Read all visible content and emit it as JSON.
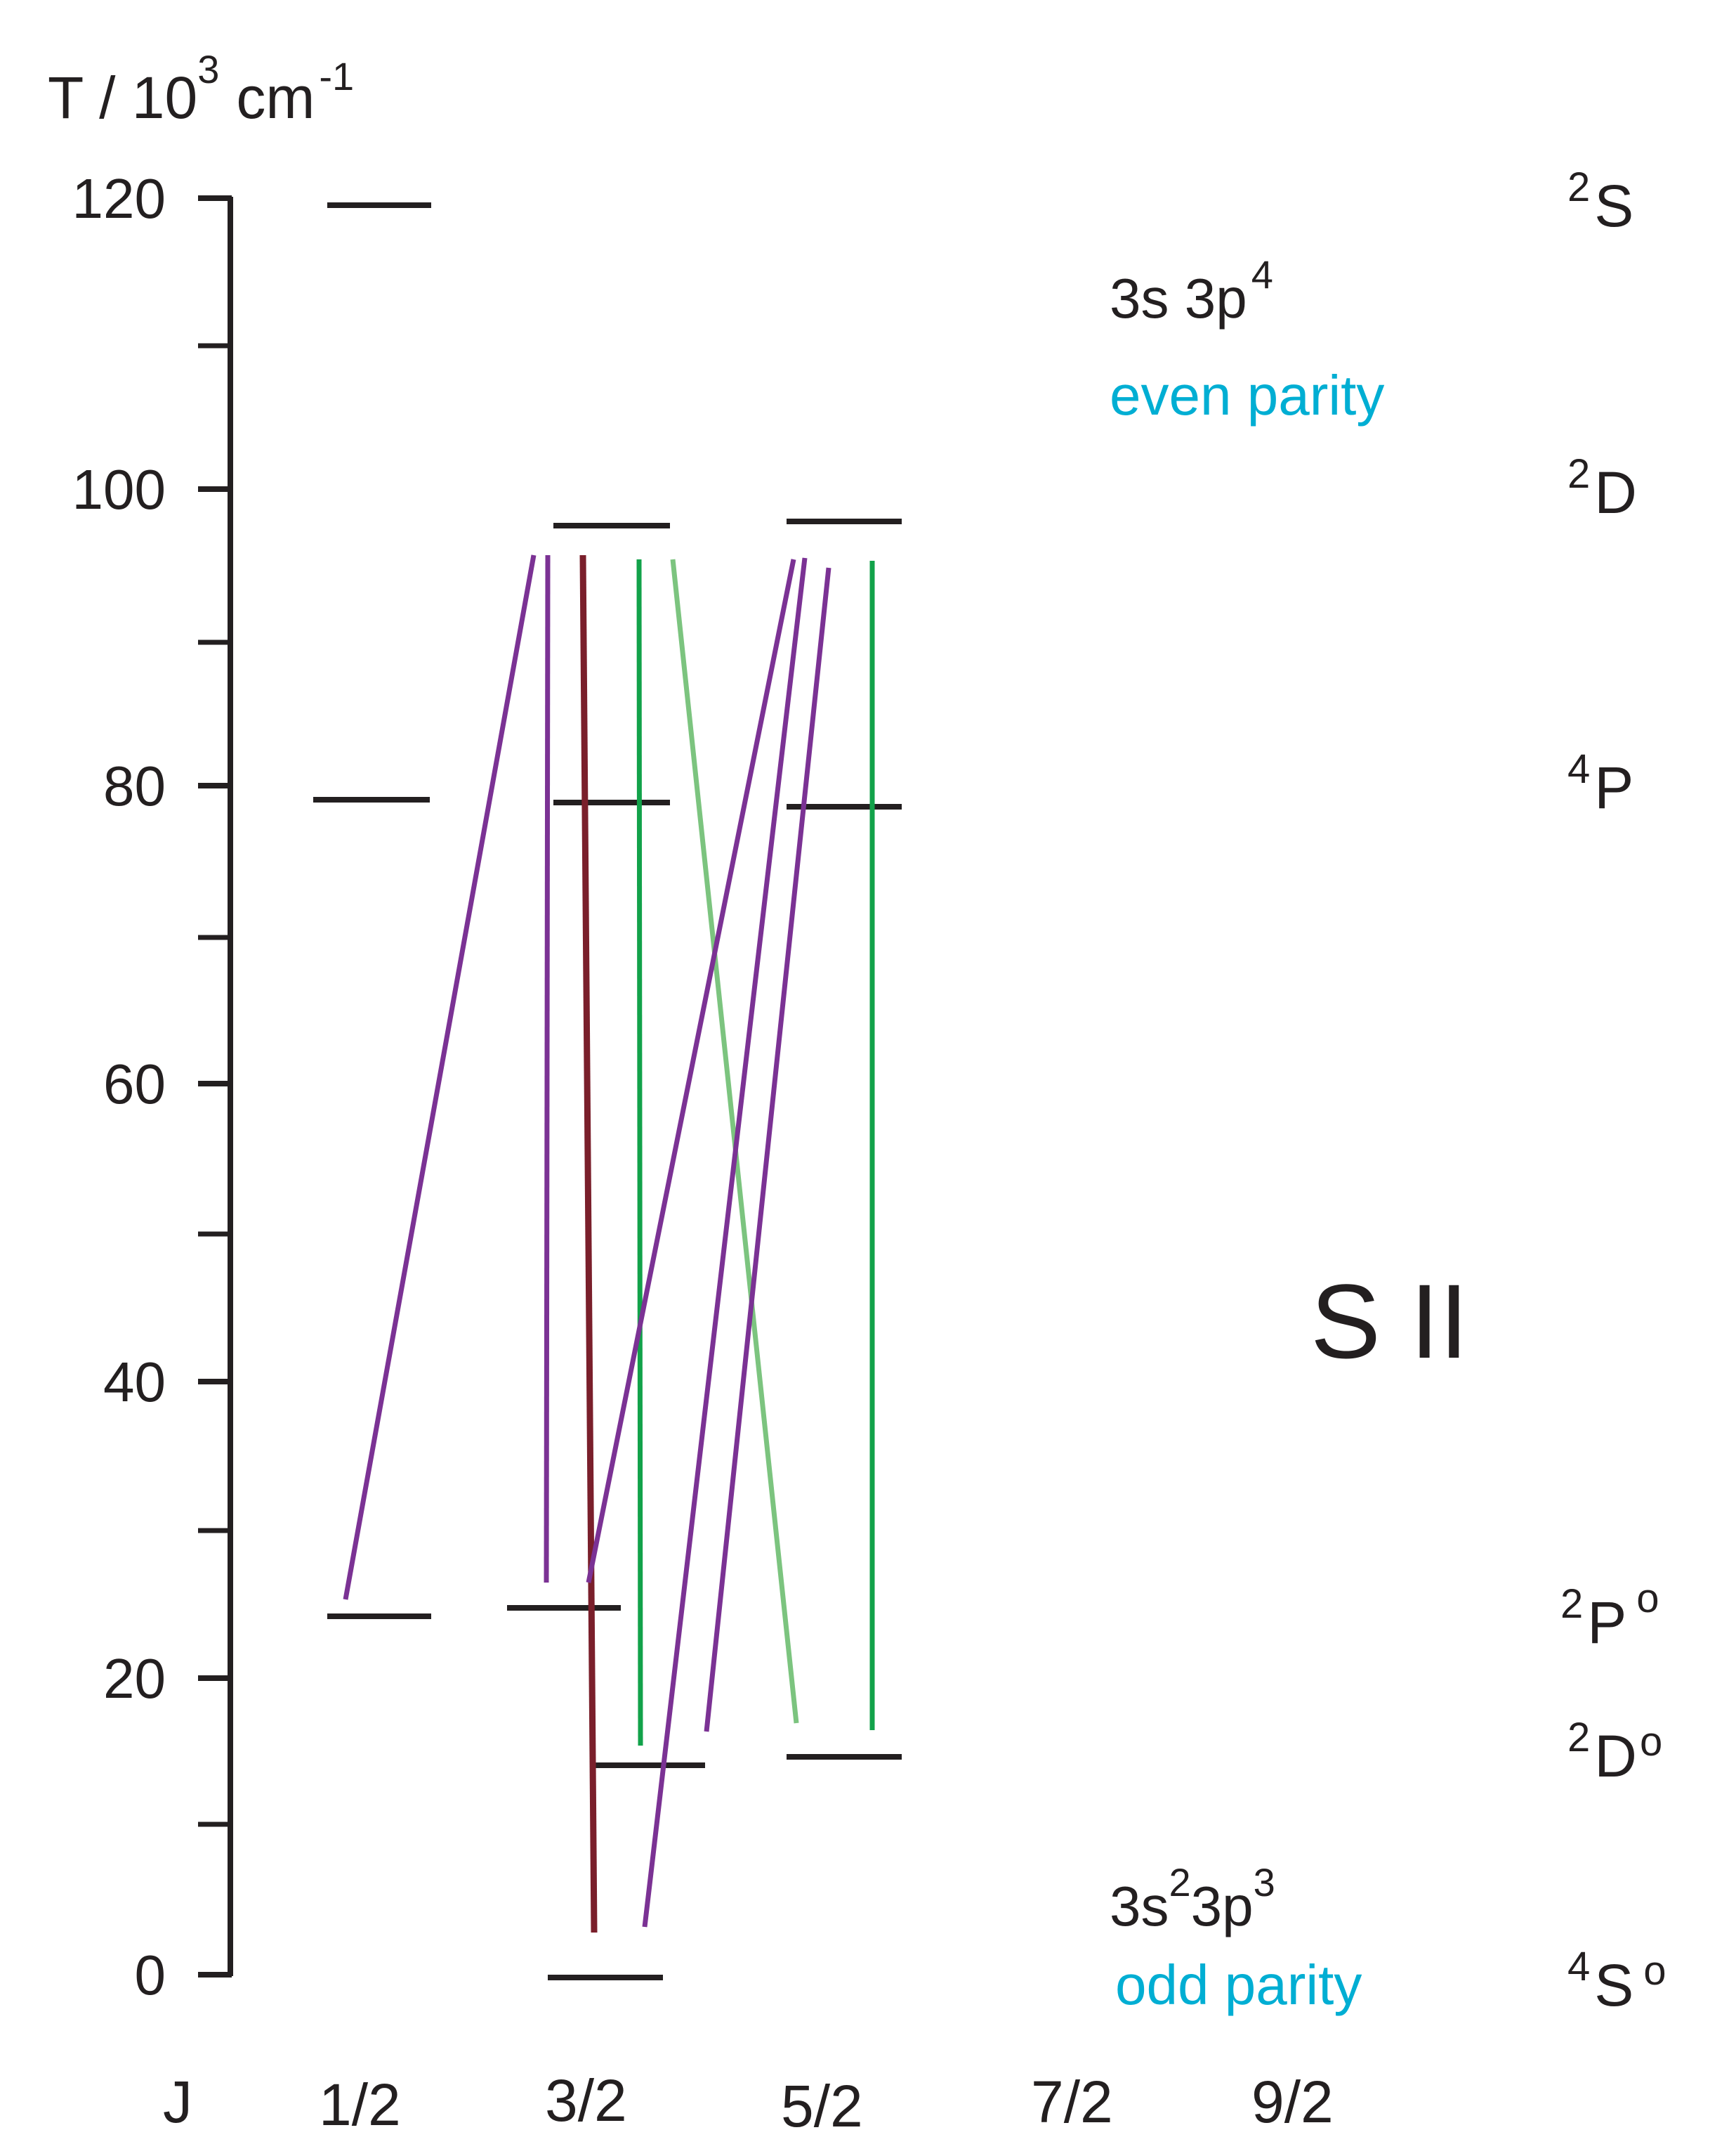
{
  "diagram": {
    "ion": "S II",
    "axis_title": {
      "base": "T / 10",
      "exp": "3",
      "unit": "cm",
      "unit_exp": "-1"
    },
    "y_ticks": [
      "0",
      "20",
      "40",
      "60",
      "80",
      "100",
      "120"
    ],
    "j_axis_label": "J",
    "j_values": [
      "1/2",
      "3/2",
      "5/2",
      "7/2",
      "9/2"
    ],
    "even_config": {
      "text": "3s 3p",
      "exp": "4",
      "parity": "even parity"
    },
    "odd_config": {
      "parts": [
        "3s",
        "2",
        "3p",
        "3"
      ],
      "parity": "odd parity"
    },
    "terms": [
      {
        "mult": "2",
        "L": "S",
        "odd": ""
      },
      {
        "mult": "2",
        "L": "D",
        "odd": ""
      },
      {
        "mult": "4",
        "L": "P",
        "odd": ""
      },
      {
        "mult": "2",
        "L": "P",
        "odd": "o"
      },
      {
        "mult": "2",
        "L": "D",
        "odd": "o"
      },
      {
        "mult": "4",
        "L": "S",
        "odd": "o"
      }
    ],
    "levels_T_1e3cm": [
      {
        "J": "1/2",
        "T": 119.6
      },
      {
        "J": "1/2",
        "T": 79.3
      },
      {
        "J": "1/2",
        "T": 24.6
      },
      {
        "J": "3/2",
        "T": 97.6
      },
      {
        "J": "3/2",
        "T": 79.2
      },
      {
        "J": "3/2",
        "T": 25.2
      },
      {
        "J": "3/2",
        "T": 14.9
      },
      {
        "J": "3/2",
        "T": 0.0
      },
      {
        "J": "5/2",
        "T": 97.9
      },
      {
        "J": "5/2",
        "T": 78.8
      },
      {
        "J": "5/2",
        "T": 14.8
      }
    ],
    "colors": {
      "black": "#231f20",
      "purple": "#7b3294",
      "darkred": "#7a1f2b",
      "green": "#12a24a",
      "lightgreen": "#7cc47f",
      "cyan": "#00aed3"
    }
  }
}
